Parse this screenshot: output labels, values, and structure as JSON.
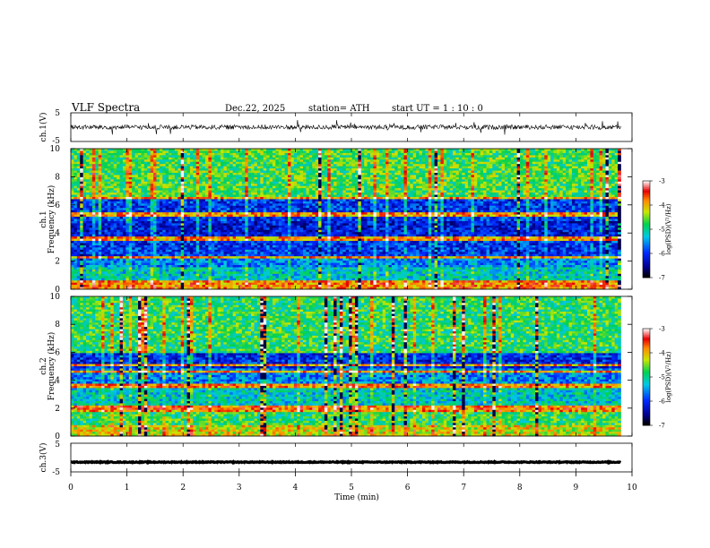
{
  "header": {
    "title": "VLF  Spectra",
    "date": "Dec.22, 2025",
    "station": "station= ATH",
    "start_ut": "start  UT  =   1 : 10 : 0"
  },
  "chart_data": [
    {
      "type": "line",
      "panel": "ch1-waveform",
      "ylabel": "ch.1(V)",
      "ylim": [
        -5,
        5
      ],
      "yticks": [
        "5",
        "-5"
      ],
      "x_range_min": [
        0,
        9.8
      ],
      "series": [
        {
          "name": "ch.1",
          "baseline": 0.0,
          "noise_amplitude": 0.8,
          "spike_amplitude": 2.5
        }
      ]
    },
    {
      "type": "heatmap",
      "panel": "ch1-spectrogram",
      "ylabel": "ch.1 Frequency (kHz)",
      "xlim": [
        0,
        10
      ],
      "ylim": [
        0,
        10
      ],
      "yticks": [
        "0",
        "2",
        "4",
        "6",
        "8",
        "10"
      ],
      "data_xlim_min": [
        0,
        9.8
      ],
      "color_range_log": [
        -7,
        -3
      ],
      "background_level": -5.8,
      "bands": [
        {
          "low_khz": 0.0,
          "high_khz": 0.6,
          "level": -3.8
        },
        {
          "low_khz": 0.6,
          "high_khz": 1.6,
          "level": -5.2
        },
        {
          "low_khz": 1.6,
          "high_khz": 2.2,
          "level": -5.6
        },
        {
          "low_khz": 2.2,
          "high_khz": 2.4,
          "level": -3.9
        },
        {
          "low_khz": 2.4,
          "high_khz": 3.5,
          "level": -6.0
        },
        {
          "low_khz": 3.5,
          "high_khz": 4.8,
          "level": -6.2
        },
        {
          "low_khz": 4.8,
          "high_khz": 6.5,
          "level": -6.0
        },
        {
          "low_khz": 6.5,
          "high_khz": 10.0,
          "level": -4.7
        }
      ],
      "tone_lines_khz": [
        0.5,
        2.3,
        3.6,
        5.3,
        6.5
      ]
    },
    {
      "type": "heatmap",
      "panel": "ch2-spectrogram",
      "ylabel": "ch.2 Frequency (kHz)",
      "xlim": [
        0,
        10
      ],
      "ylim": [
        0,
        10
      ],
      "yticks": [
        "0",
        "2",
        "4",
        "6",
        "8",
        "10"
      ],
      "data_xlim_min": [
        0,
        9.8
      ],
      "color_range_log": [
        -7,
        -3
      ],
      "background_level": -5.6,
      "bands": [
        {
          "low_khz": 0.0,
          "high_khz": 0.8,
          "level": -4.2
        },
        {
          "low_khz": 0.8,
          "high_khz": 1.8,
          "level": -4.8
        },
        {
          "low_khz": 1.8,
          "high_khz": 2.2,
          "level": -3.7
        },
        {
          "low_khz": 2.2,
          "high_khz": 3.4,
          "level": -5.2
        },
        {
          "low_khz": 3.4,
          "high_khz": 3.8,
          "level": -3.8
        },
        {
          "low_khz": 3.8,
          "high_khz": 4.8,
          "level": -5.6
        },
        {
          "low_khz": 4.8,
          "high_khz": 6.0,
          "level": -6.1
        },
        {
          "low_khz": 6.0,
          "high_khz": 10.0,
          "level": -4.8
        }
      ],
      "tone_lines_khz": [
        1.9,
        3.6,
        4.6,
        5.1
      ]
    },
    {
      "type": "line",
      "panel": "ch3-waveform",
      "ylabel": "ch.3(V)",
      "ylim": [
        -5,
        5
      ],
      "yticks": [
        "5",
        "-5"
      ],
      "x_range_min": [
        0,
        9.8
      ],
      "series": [
        {
          "name": "ch.3",
          "baseline": -1.6,
          "noise_amplitude": 0.15,
          "spike_amplitude": 0
        }
      ]
    }
  ],
  "x_axis": {
    "label": "Time  (min)",
    "ticks": [
      "0",
      "1",
      "2",
      "3",
      "4",
      "5",
      "6",
      "7",
      "8",
      "9",
      "10"
    ]
  },
  "colorbar": {
    "label": "log(PSD)(V²/Hz)",
    "ticks": [
      "-3",
      "-4",
      "-5",
      "-6",
      "-7"
    ]
  }
}
